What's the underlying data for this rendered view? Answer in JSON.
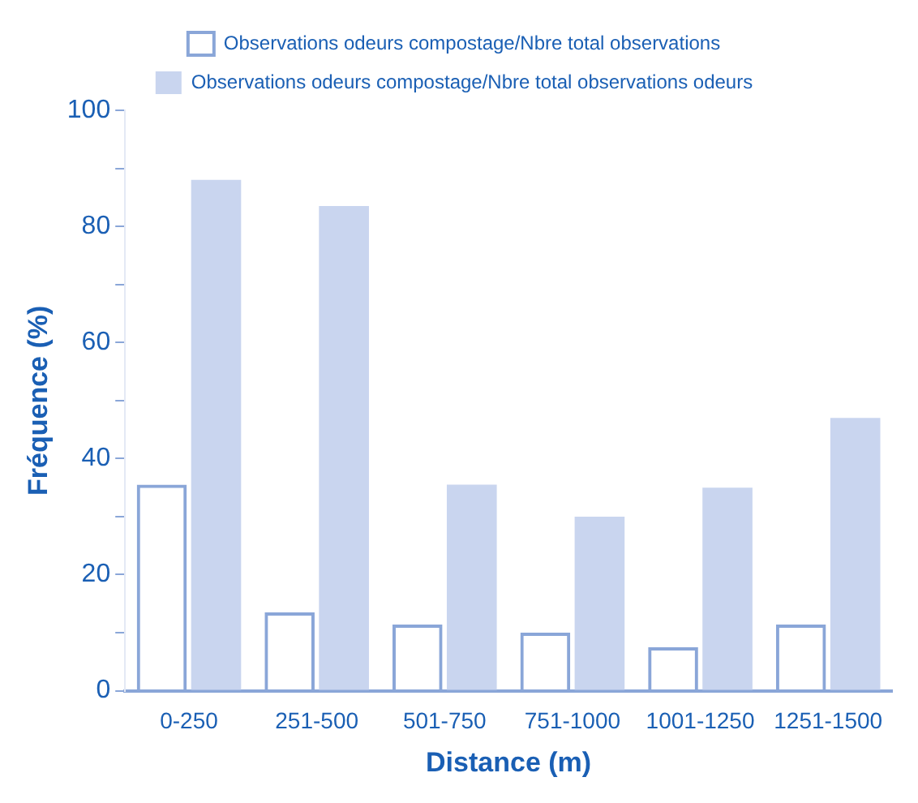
{
  "chart_data": {
    "type": "bar",
    "xlabel": "Distance (m)",
    "ylabel": "Fréquence (%)",
    "categories": [
      "0-250",
      "251-500",
      "501-750",
      "751-1000",
      "1001-1250",
      "1251-1500"
    ],
    "series": [
      {
        "name": "Observations odeurs compostage/Nbre total observations",
        "color": "#8aa6d8",
        "values": [
          35.5,
          13.5,
          11.4,
          10,
          7.5,
          11.4
        ]
      },
      {
        "name": "Observations odeurs compostage/Nbre total observations odeurs",
        "color": "#c9d5ef",
        "values": [
          88,
          83.5,
          35.5,
          30,
          35,
          47
        ]
      }
    ],
    "ylim": [
      0,
      100
    ],
    "yticks": [
      0,
      {
        "value": 10,
        "label": null
      },
      20,
      {
        "value": 30,
        "label": null
      },
      40,
      {
        "value": 50,
        "label": null
      },
      60,
      {
        "value": 70,
        "label": null
      },
      80,
      {
        "value": 90,
        "label": null
      },
      100
    ],
    "grid": false,
    "legend": "top"
  }
}
